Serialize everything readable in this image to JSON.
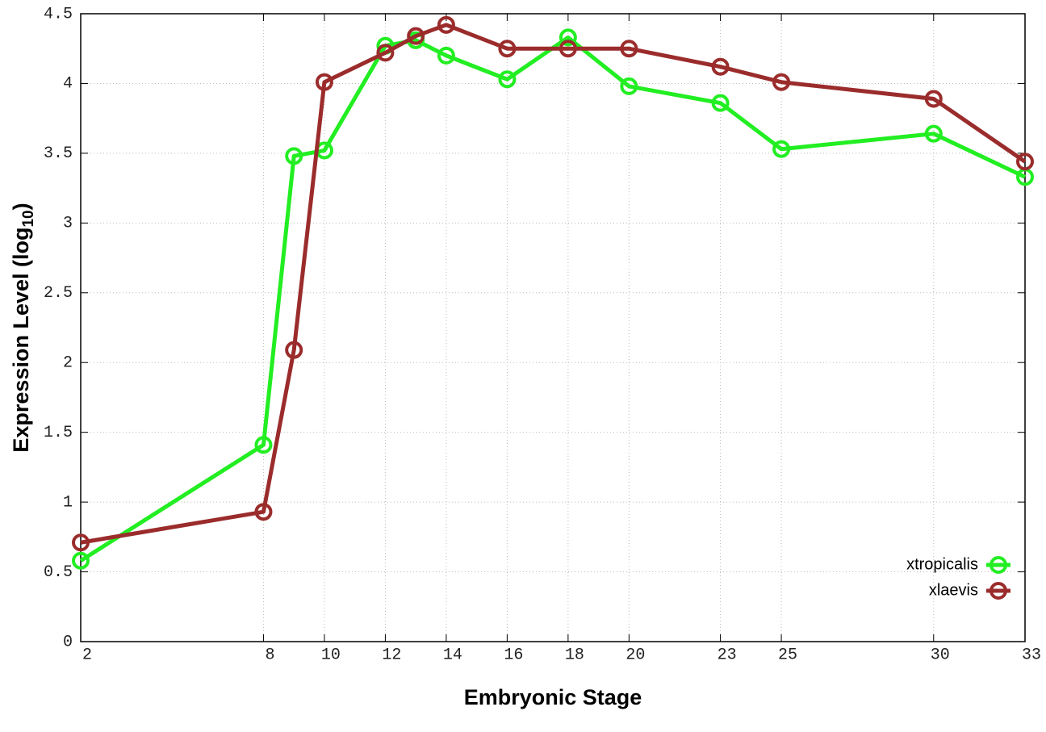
{
  "chart_data": {
    "type": "line",
    "x_label": "Embryonic Stage",
    "y_label": {
      "text": "Expression Level (log",
      "sub": "10",
      "end": ")"
    },
    "x": [
      2,
      8,
      9,
      10,
      12,
      13,
      14,
      16,
      18,
      20,
      23,
      25,
      30,
      33
    ],
    "series": [
      {
        "name": "xtropicalis",
        "color": "#22ee22",
        "values": [
          0.58,
          1.41,
          3.48,
          3.52,
          4.27,
          4.31,
          4.2,
          4.03,
          4.33,
          3.98,
          3.86,
          3.53,
          3.64,
          3.33
        ]
      },
      {
        "name": "xlaevis",
        "color": "#9b2c2c",
        "values": [
          0.71,
          0.93,
          2.09,
          4.01,
          4.22,
          4.34,
          4.42,
          4.25,
          4.25,
          4.25,
          4.12,
          4.01,
          3.89,
          3.44
        ]
      }
    ],
    "xlim": [
      2,
      33
    ],
    "xticks": [
      2,
      8,
      10,
      12,
      14,
      16,
      18,
      20,
      23,
      25,
      30,
      33
    ],
    "ylim": [
      0,
      4.5
    ],
    "yticks": [
      0,
      0.5,
      1,
      1.5,
      2,
      2.5,
      3,
      3.5,
      4,
      4.5
    ],
    "grid": true,
    "legend": "lower right"
  }
}
